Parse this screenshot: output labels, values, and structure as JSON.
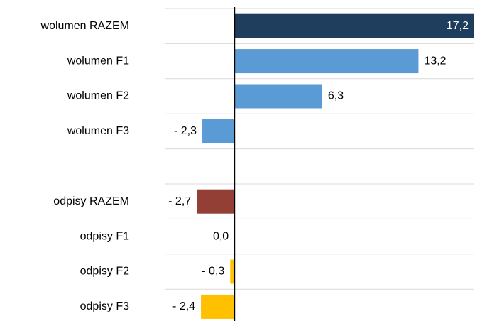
{
  "chart_data": {
    "type": "bar",
    "orientation": "horizontal",
    "categories": [
      "wolumen RAZEM",
      "wolumen F1",
      "wolumen F2",
      "wolumen F3",
      null,
      "odpisy RAZEM",
      "odpisy F1",
      "odpisy F2",
      "odpisy F3"
    ],
    "values": [
      17.2,
      13.2,
      6.3,
      -2.3,
      null,
      -2.7,
      0.0,
      -0.3,
      -2.4
    ],
    "value_labels": [
      "17,2",
      "13,2",
      "6,3",
      "- 2,3",
      null,
      "- 2,7",
      "0,0",
      "- 0,3",
      "- 2,4"
    ],
    "colors": [
      "#1f3d5c",
      "#5b9bd5",
      "#5b9bd5",
      "#5b9bd5",
      null,
      "#943f35",
      "#ffc000",
      "#ffc000",
      "#ffc000"
    ],
    "xlim": [
      -5,
      17.2
    ]
  }
}
